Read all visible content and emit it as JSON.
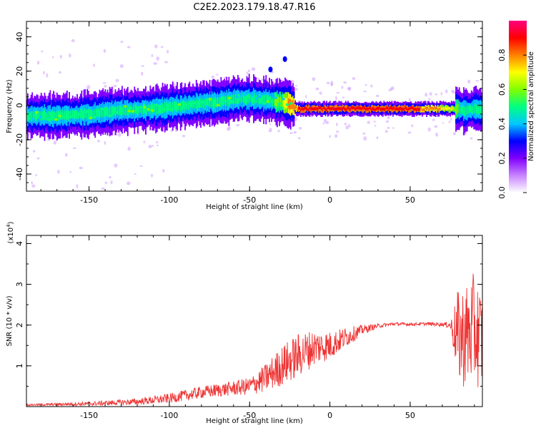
{
  "title": "C2E2.2023.179.18.47.R16",
  "chart_data": [
    {
      "type": "heatmap",
      "xlabel": "Height of straight line (km)",
      "ylabel": "Frequency (Hz)",
      "xlim": [
        -189,
        95
      ],
      "ylim": [
        -50,
        49
      ],
      "xticks": [
        -150,
        -100,
        -50,
        0,
        50
      ],
      "yticks": [
        -40,
        -20,
        0,
        20,
        40
      ],
      "colorbar": {
        "label": "Normalized spectral amplitude",
        "range": [
          0,
          1
        ],
        "ticks": [
          "0.0",
          "0.2",
          "0.4",
          "0.6",
          "0.8"
        ],
        "colors": [
          "#ffffff",
          "#c882ff",
          "#8000ff",
          "#0000ff",
          "#00c8ff",
          "#00ff80",
          "#80ff00",
          "#ffff00",
          "#ff8000",
          "#ff0000",
          "#ff0080"
        ]
      },
      "ridge": {
        "x": [
          -189,
          -170,
          -150,
          -130,
          -110,
          -90,
          -70,
          -55,
          -40,
          -30,
          -25,
          -20,
          0,
          20,
          50,
          75,
          80,
          85,
          90,
          95
        ],
        "frequency": [
          -6,
          -6,
          -5,
          -3,
          -2,
          0,
          2,
          4,
          3,
          2,
          1,
          -2,
          -2,
          -2,
          -2,
          -2,
          -2,
          -3,
          -2,
          -3
        ],
        "amplitude": [
          0.45,
          0.45,
          0.45,
          0.45,
          0.45,
          0.45,
          0.45,
          0.45,
          0.5,
          0.6,
          0.8,
          0.85,
          0.85,
          0.9,
          0.9,
          0.7,
          0.55,
          0.5,
          0.45,
          0.45
        ]
      },
      "isolated_points": [
        {
          "x": -28,
          "frequency": 27,
          "amplitude": 0.3
        },
        {
          "x": -37,
          "frequency": 21,
          "amplitude": 0.25
        },
        {
          "x": -45,
          "frequency": 12,
          "amplitude": 0.2
        }
      ]
    },
    {
      "type": "line",
      "xlabel": "Height of straight line (km)",
      "ylabel": "SNR (10 * v/v)",
      "multiplier": "(x10",
      "multiplier_exp": "4",
      "multiplier_close": ")",
      "xlim": [
        -189,
        95
      ],
      "ylim": [
        0,
        4.2
      ],
      "xticks": [
        -150,
        -100,
        -50,
        0,
        50
      ],
      "yticks": [
        1,
        2,
        3,
        4
      ],
      "series": [
        {
          "color": "#ee3333",
          "x": [
            -189,
            -150,
            -120,
            -100,
            -80,
            -60,
            -50,
            -40,
            -30,
            -20,
            -10,
            0,
            10,
            20,
            30,
            40,
            50,
            60,
            70,
            75,
            80,
            85,
            90,
            95
          ],
          "y": [
            0.04,
            0.07,
            0.12,
            0.2,
            0.35,
            0.45,
            0.5,
            0.7,
            1.0,
            1.25,
            1.45,
            1.5,
            1.7,
            1.88,
            1.98,
            2.03,
            2.02,
            2.03,
            2.02,
            2.0,
            1.7,
            1.75,
            1.9,
            1.6
          ],
          "noise": [
            0.02,
            0.05,
            0.08,
            0.12,
            0.15,
            0.18,
            0.22,
            0.35,
            0.5,
            0.55,
            0.45,
            0.35,
            0.25,
            0.12,
            0.05,
            0.04,
            0.04,
            0.04,
            0.05,
            0.08,
            1.2,
            1.3,
            1.4,
            1.2
          ]
        }
      ]
    }
  ]
}
